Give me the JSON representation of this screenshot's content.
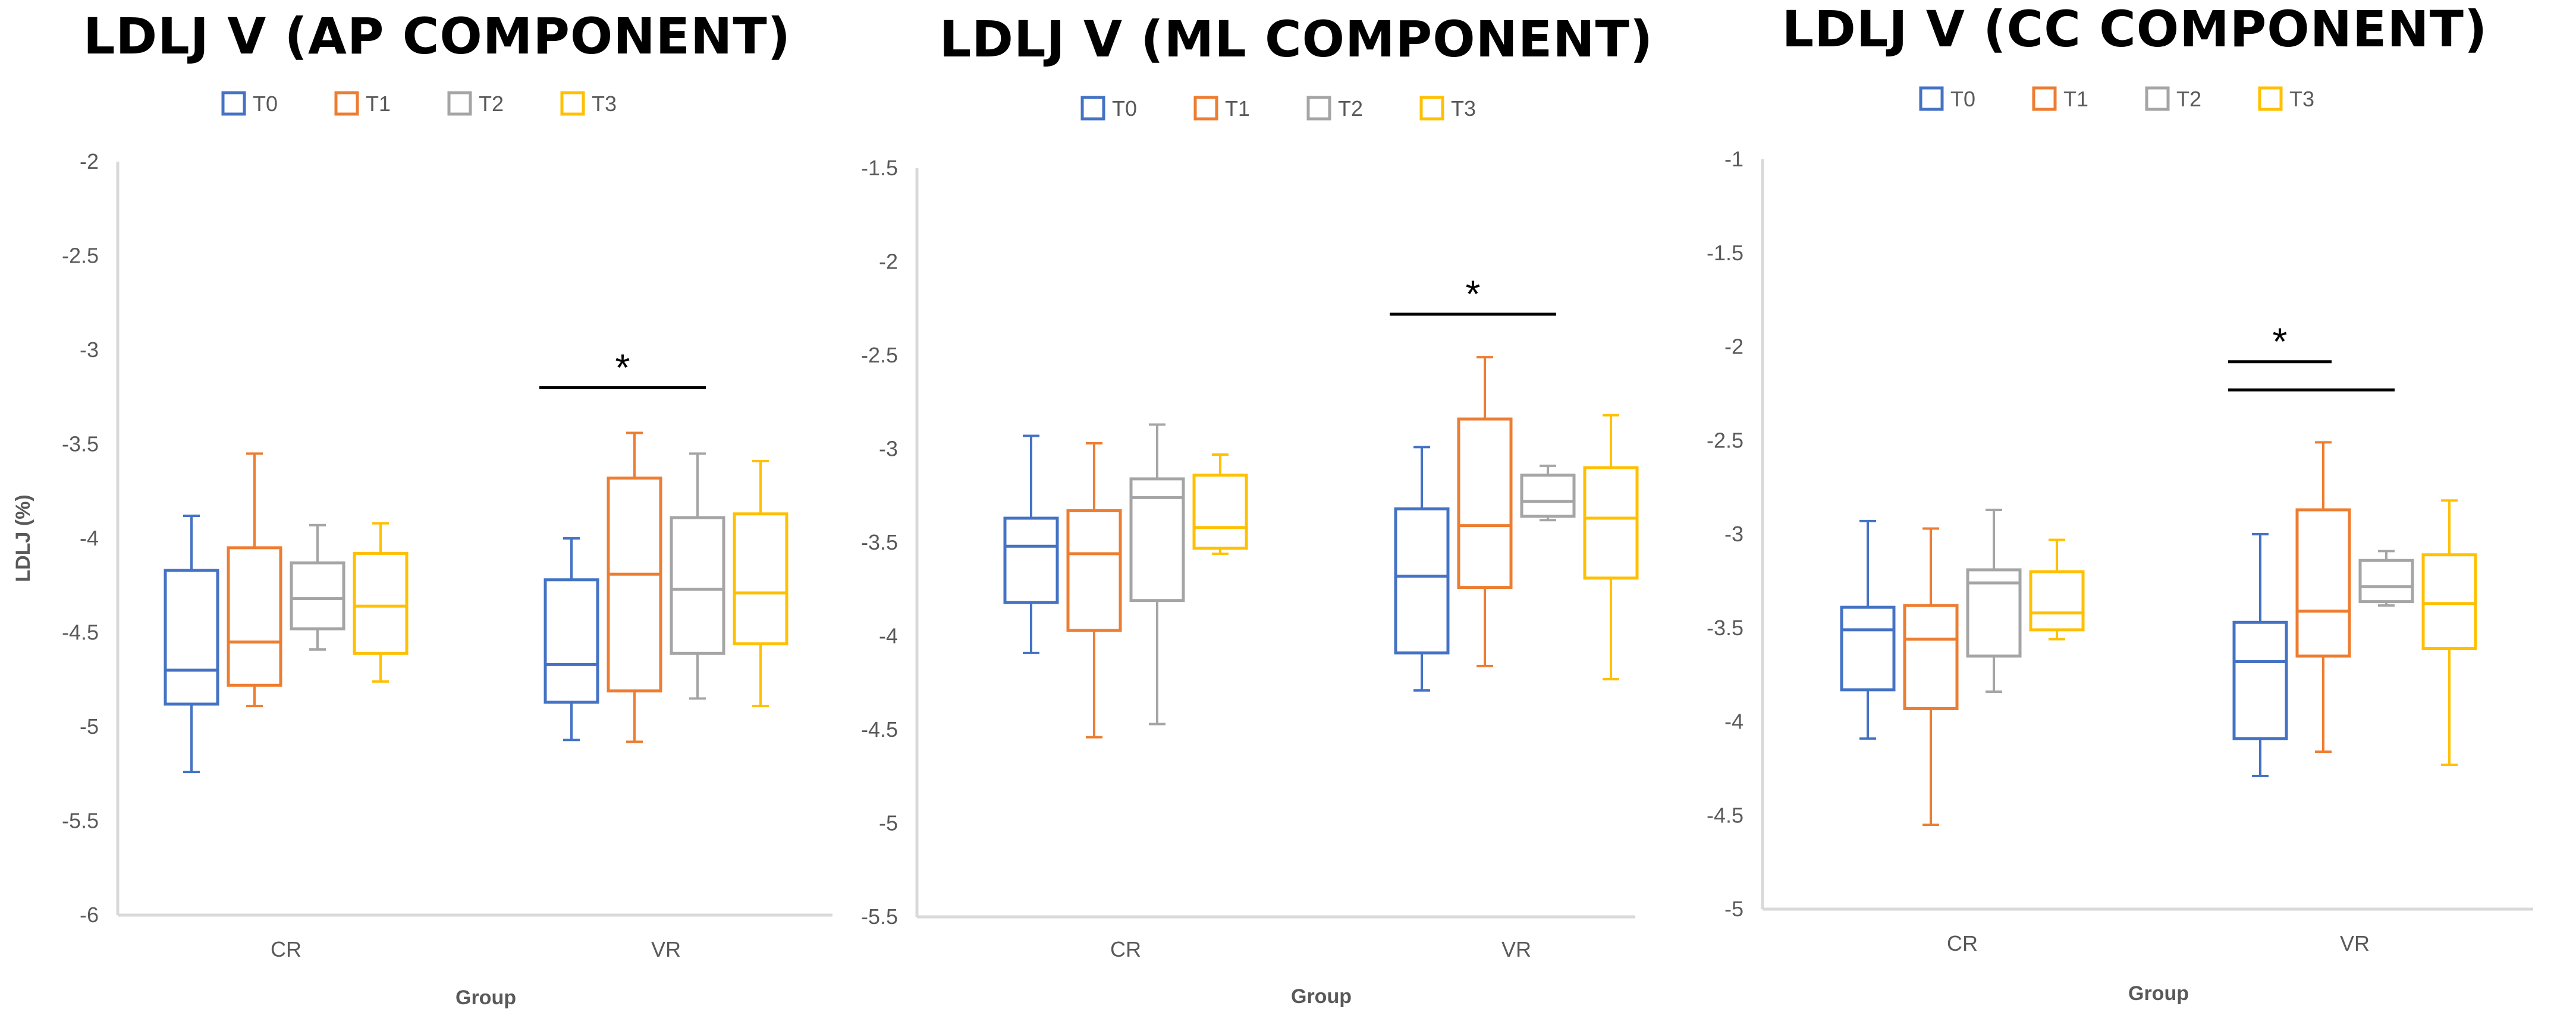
{
  "chart_data": [
    {
      "type": "box",
      "title": "LDLJ V (AP COMPONENT)",
      "xlabel": "Group",
      "ylabel": "LDLJ (%)",
      "ylim": [
        -6,
        -2
      ],
      "yticks": [
        -2,
        -2.5,
        -3,
        -3.5,
        -4,
        -4.5,
        -5,
        -5.5,
        -6
      ],
      "ytick_labels": [
        "-2",
        "-2.5",
        "-3",
        "-3.5",
        "-4",
        "-4.5",
        "-5",
        "-5.5",
        "-6"
      ],
      "categories": [
        "CR",
        "VR"
      ],
      "legend": [
        "T0",
        "T1",
        "T2",
        "T3"
      ],
      "colors": [
        "#4472C4",
        "#ED7D31",
        "#A5A5A5",
        "#FFC000"
      ],
      "series": [
        {
          "name": "T0",
          "boxes": [
            {
              "min": -5.24,
              "q1": -4.88,
              "median": -4.7,
              "q3": -4.17,
              "max": -3.88
            },
            {
              "min": -5.07,
              "q1": -4.87,
              "median": -4.67,
              "q3": -4.22,
              "max": -4.0
            }
          ]
        },
        {
          "name": "T1",
          "boxes": [
            {
              "min": -4.89,
              "q1": -4.78,
              "median": -4.55,
              "q3": -4.05,
              "max": -3.55
            },
            {
              "min": -5.08,
              "q1": -4.81,
              "median": -4.19,
              "q3": -3.68,
              "max": -3.44
            }
          ]
        },
        {
          "name": "T2",
          "boxes": [
            {
              "min": -4.59,
              "q1": -4.48,
              "median": -4.32,
              "q3": -4.13,
              "max": -3.93
            },
            {
              "min": -4.85,
              "q1": -4.61,
              "median": -4.27,
              "q3": -3.89,
              "max": -3.55
            }
          ]
        },
        {
          "name": "T3",
          "boxes": [
            {
              "min": -4.76,
              "q1": -4.61,
              "median": -4.36,
              "q3": -4.08,
              "max": -3.92
            },
            {
              "min": -4.89,
              "q1": -4.56,
              "median": -4.29,
              "q3": -3.87,
              "max": -3.59
            }
          ]
        }
      ],
      "annotations": [
        {
          "text": "*",
          "group": "VR",
          "from_series": "T0",
          "to_series": "T2",
          "level": -3.2
        }
      ]
    },
    {
      "type": "box",
      "title": "LDLJ V (ML COMPONENT)",
      "xlabel": "Group",
      "ylabel": "",
      "ylim": [
        -5.5,
        -1.5
      ],
      "yticks": [
        -1.5,
        -2,
        -2.5,
        -3,
        -3.5,
        -4,
        -4.5,
        -5,
        -5.5
      ],
      "ytick_labels": [
        "-1.5",
        "-2",
        "-2.5",
        "-3",
        "-3.5",
        "-4",
        "-4.5",
        "-5",
        "-5.5"
      ],
      "categories": [
        "CR",
        "VR"
      ],
      "legend": [
        "T0",
        "T1",
        "T2",
        "T3"
      ],
      "colors": [
        "#4472C4",
        "#ED7D31",
        "#A5A5A5",
        "#FFC000"
      ],
      "series": [
        {
          "name": "T0",
          "boxes": [
            {
              "min": -4.09,
              "q1": -3.82,
              "median": -3.52,
              "q3": -3.37,
              "max": -2.93
            },
            {
              "min": -4.29,
              "q1": -4.09,
              "median": -3.68,
              "q3": -3.32,
              "max": -2.99
            }
          ]
        },
        {
          "name": "T1",
          "boxes": [
            {
              "min": -4.54,
              "q1": -3.97,
              "median": -3.56,
              "q3": -3.33,
              "max": -2.97
            },
            {
              "min": -4.16,
              "q1": -3.74,
              "median": -3.41,
              "q3": -2.84,
              "max": -2.51
            }
          ]
        },
        {
          "name": "T2",
          "boxes": [
            {
              "min": -4.47,
              "q1": -3.81,
              "median": -3.26,
              "q3": -3.16,
              "max": -2.87
            },
            {
              "min": -3.38,
              "q1": -3.36,
              "median": -3.28,
              "q3": -3.14,
              "max": -3.09
            }
          ]
        },
        {
          "name": "T3",
          "boxes": [
            {
              "min": -3.56,
              "q1": -3.53,
              "median": -3.42,
              "q3": -3.14,
              "max": -3.03
            },
            {
              "min": -4.23,
              "q1": -3.69,
              "median": -3.37,
              "q3": -3.1,
              "max": -2.82
            }
          ]
        }
      ],
      "annotations": [
        {
          "text": "*",
          "group": "VR",
          "from_series": "T0",
          "to_series": "T2",
          "level": -2.28
        }
      ]
    },
    {
      "type": "box",
      "title": "LDLJ V (CC COMPONENT)",
      "xlabel": "Group",
      "ylabel": "",
      "ylim": [
        -5,
        -1
      ],
      "yticks": [
        -1,
        -1.5,
        -2,
        -2.5,
        -3,
        -3.5,
        -4,
        -4.5,
        -5
      ],
      "ytick_labels": [
        "-1",
        "-1.5",
        "-2",
        "-2.5",
        "-3",
        "-3.5",
        "-4",
        "-4.5",
        "-5"
      ],
      "categories": [
        "CR",
        "VR"
      ],
      "legend": [
        "T0",
        "T1",
        "T2",
        "T3"
      ],
      "colors": [
        "#4472C4",
        "#ED7D31",
        "#A5A5A5",
        "#FFC000"
      ],
      "series": [
        {
          "name": "T0",
          "boxes": [
            {
              "min": -4.09,
              "q1": -3.83,
              "median": -3.51,
              "q3": -3.39,
              "max": -2.93
            },
            {
              "min": -4.29,
              "q1": -4.09,
              "median": -3.68,
              "q3": -3.47,
              "max": -3.0
            }
          ]
        },
        {
          "name": "T1",
          "boxes": [
            {
              "min": -4.55,
              "q1": -3.93,
              "median": -3.56,
              "q3": -3.38,
              "max": -2.97
            },
            {
              "min": -4.16,
              "q1": -3.65,
              "median": -3.41,
              "q3": -2.87,
              "max": -2.51
            }
          ]
        },
        {
          "name": "T2",
          "boxes": [
            {
              "min": -3.84,
              "q1": -3.65,
              "median": -3.26,
              "q3": -3.19,
              "max": -2.87
            },
            {
              "min": -3.38,
              "q1": -3.36,
              "median": -3.28,
              "q3": -3.14,
              "max": -3.09
            }
          ]
        },
        {
          "name": "T3",
          "boxes": [
            {
              "min": -3.56,
              "q1": -3.51,
              "median": -3.42,
              "q3": -3.2,
              "max": -3.03
            },
            {
              "min": -4.23,
              "q1": -3.61,
              "median": -3.37,
              "q3": -3.11,
              "max": -2.82
            }
          ]
        }
      ],
      "annotations": [
        {
          "text": "*",
          "group": "VR",
          "from_series": "T0",
          "to_series": "T1",
          "level": -2.08
        },
        {
          "text": "",
          "group": "VR",
          "from_series": "T0",
          "to_series": "T2",
          "level": -2.23
        }
      ]
    }
  ]
}
